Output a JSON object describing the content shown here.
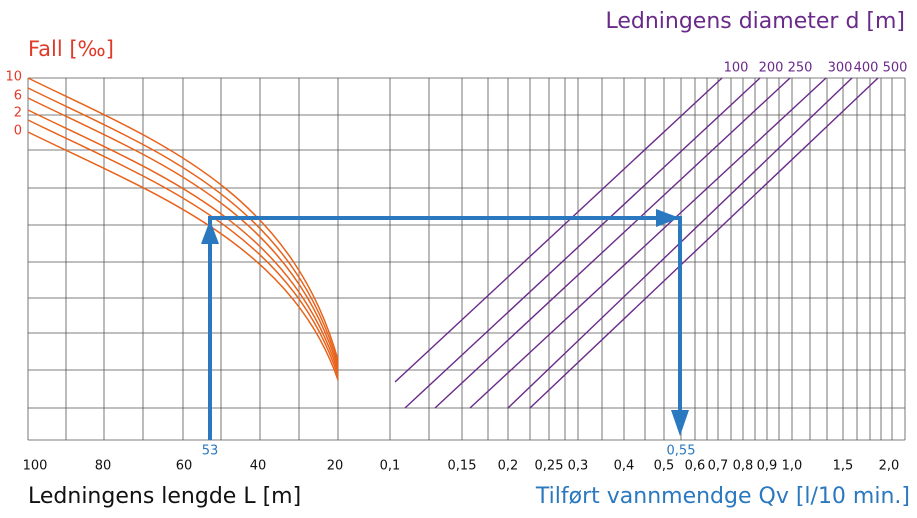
{
  "title_fall": "Fall [‰]",
  "title_diameter": "Ledningens diameter d [m]",
  "title_length": "Ledningens lengde L [m]",
  "title_flow": "Tilført vannmendge Qv [l/10 min.]",
  "fall_labels": [
    "10",
    "6",
    "2",
    "0"
  ],
  "diameter_labels": [
    "100",
    "200",
    "250",
    "300",
    "400",
    "500"
  ],
  "length_labels": [
    "100",
    "80",
    "60",
    "40",
    "20"
  ],
  "flow_labels": [
    "0,1",
    "0,15",
    "0,2",
    "0,25",
    "0,3",
    "0,4",
    "0,5",
    "0,6",
    "0,7",
    "0,8",
    "0,9",
    "1,0",
    "1,5",
    "2,0"
  ],
  "annotations": [
    "53",
    "0,55"
  ]
}
